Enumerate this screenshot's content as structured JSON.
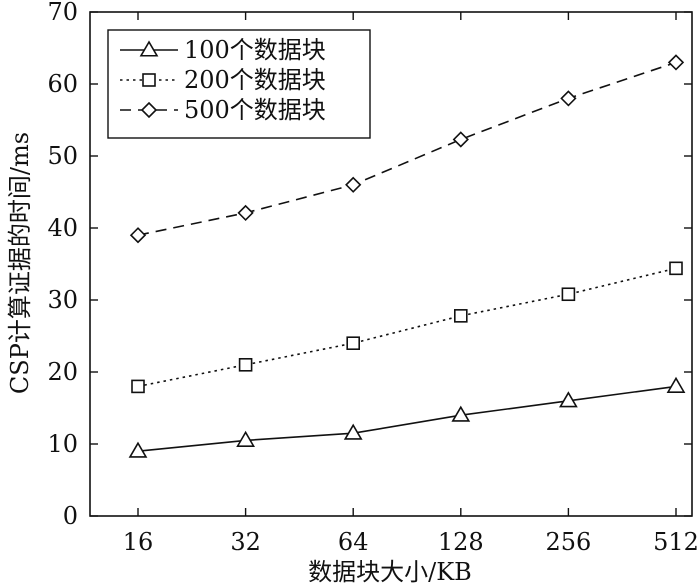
{
  "chart_data": {
    "type": "line",
    "xlabel": "数据块大小/KB",
    "ylabel": "CSP计算证据的时间/ms",
    "categories": [
      "16",
      "32",
      "64",
      "128",
      "256",
      "512"
    ],
    "ylim": [
      0,
      70
    ],
    "yticks": [
      0,
      10,
      20,
      30,
      40,
      50,
      60,
      70
    ],
    "legend_position": "top-left",
    "grid": false,
    "series": [
      {
        "name": "100个数据块",
        "marker": "triangle",
        "dash": "solid",
        "values": [
          9,
          10.5,
          11.5,
          14,
          16,
          18
        ]
      },
      {
        "name": "200个数据块",
        "marker": "square",
        "dash": "dotted",
        "values": [
          18,
          21,
          24,
          27.8,
          30.8,
          34.4
        ]
      },
      {
        "name": "500个数据块",
        "marker": "diamond",
        "dash": "dashed",
        "values": [
          39,
          42.1,
          46,
          52.3,
          58,
          63
        ]
      }
    ]
  }
}
